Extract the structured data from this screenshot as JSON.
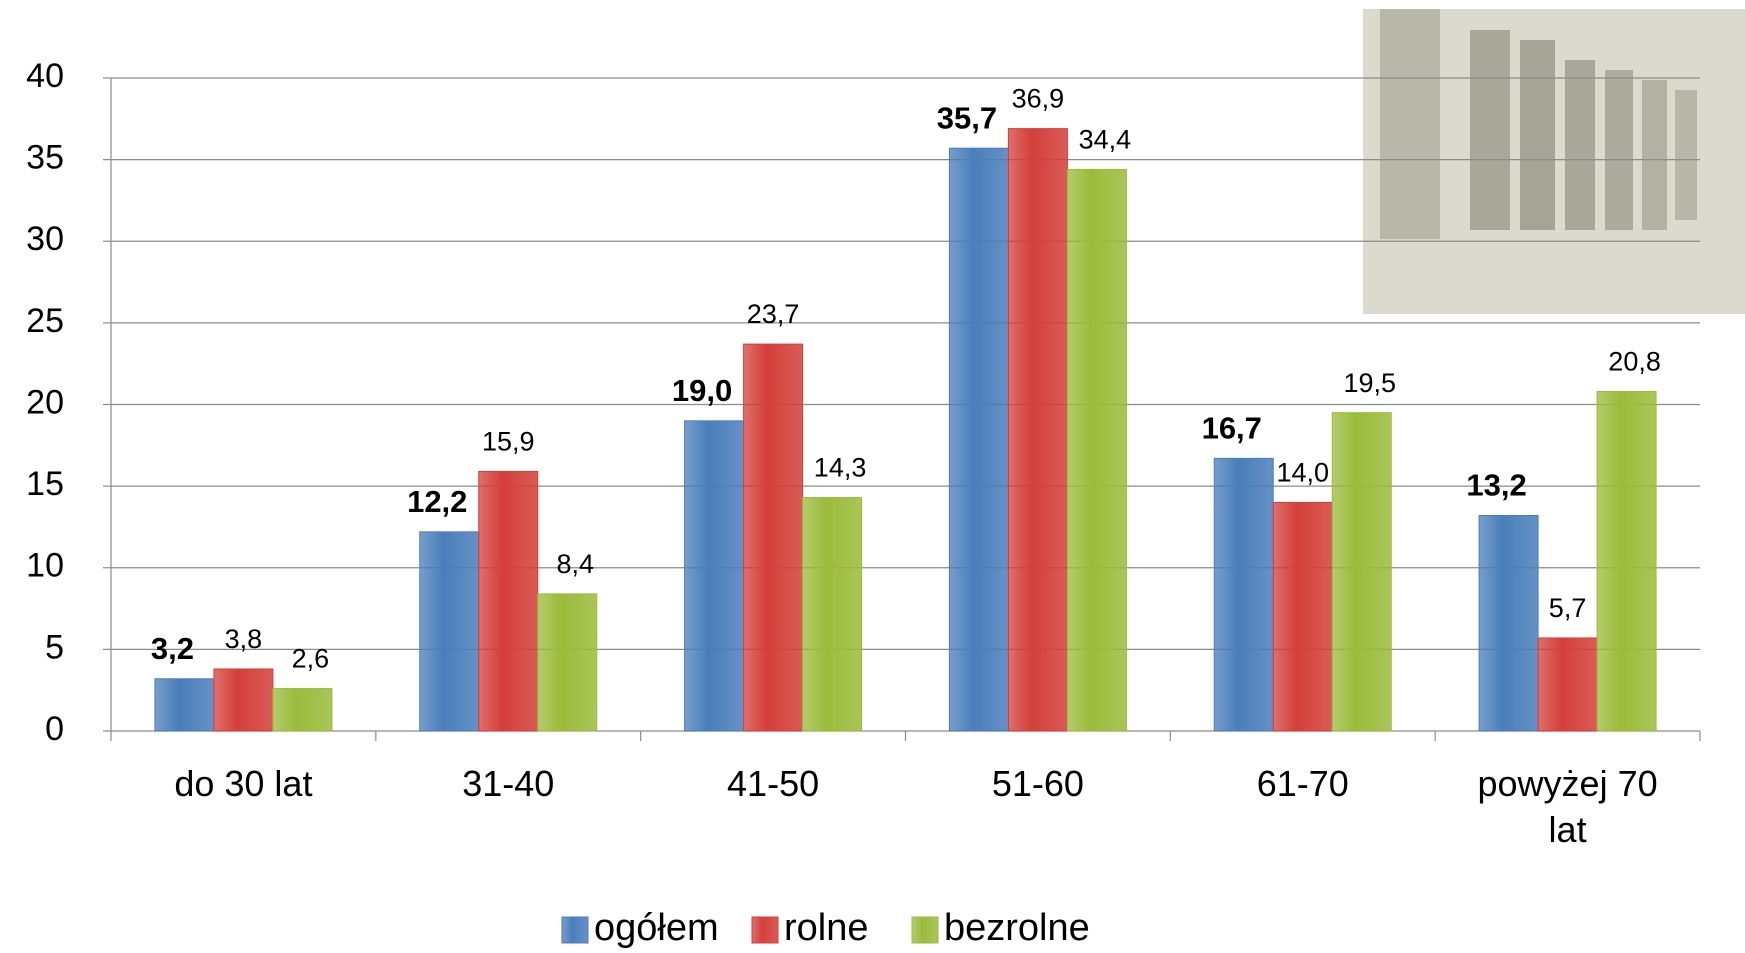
{
  "chart_data": {
    "type": "bar",
    "categories": [
      "do 30 lat",
      "31-40",
      "41-50",
      "51-60",
      "61-70",
      "powyżej 70 lat"
    ],
    "series": [
      {
        "name": "ogółem",
        "color": "#4a7ebb",
        "values": [
          3.2,
          12.2,
          19.0,
          35.7,
          16.7,
          13.2
        ],
        "value_labels": [
          "3,2",
          "12,2",
          "19,0",
          "35,7",
          "16,7",
          "13,2"
        ]
      },
      {
        "name": "rolne",
        "color": "#d43f3a",
        "values": [
          3.8,
          15.9,
          23.7,
          36.9,
          14.0,
          5.7
        ],
        "value_labels": [
          "3,8",
          "15,9",
          "23,7",
          "36,9",
          "14,0",
          "5,7"
        ]
      },
      {
        "name": "bezrolne",
        "color": "#9bbb3b",
        "values": [
          2.6,
          8.4,
          14.3,
          34.4,
          19.5,
          20.8
        ],
        "value_labels": [
          "2,6",
          "8,4",
          "14,3",
          "34,4",
          "19,5",
          "20,8"
        ]
      }
    ],
    "ylim": [
      0,
      40
    ],
    "yticks": [
      0,
      5,
      10,
      15,
      20,
      25,
      30,
      35,
      40
    ],
    "grid": true,
    "legend": "bottom"
  }
}
